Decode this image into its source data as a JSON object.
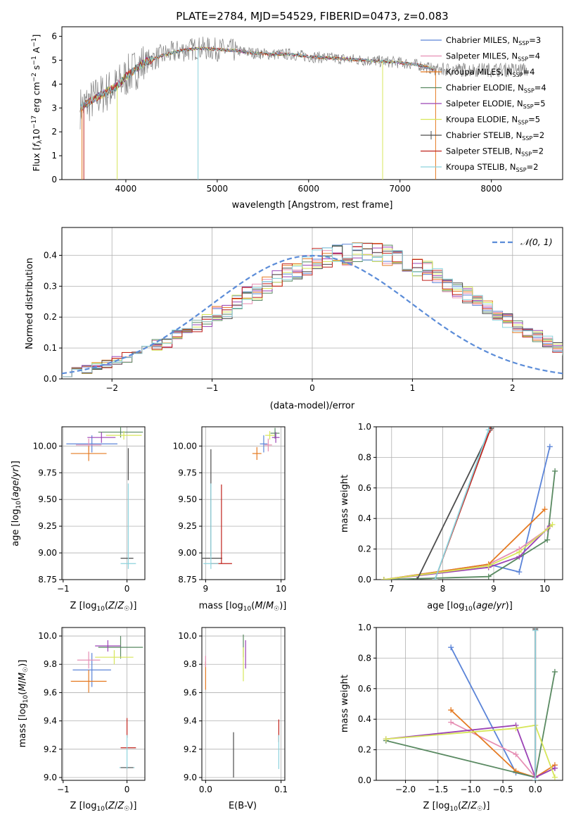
{
  "figure_title": "PLATE=2784, MJD=54529, FIBERID=0473, z=0.083",
  "colors": {
    "chabrier_miles": "#5b84d8",
    "salpeter_miles": "#e68fb4",
    "kroupa_miles": "#e57a22",
    "chabrier_elodie": "#5a8a62",
    "salpeter_elodie": "#9b43b5",
    "kroupa_elodie": "#d7e65a",
    "chabrier_stelib": "#4d4d4d",
    "salpeter_stelib": "#c0231c",
    "kroupa_stelib": "#8dd3dd",
    "data": "#808080",
    "normal": "#5b8cd8",
    "grid": "#b0b0b0"
  },
  "chart_data": [
    {
      "type": "line",
      "title": "PLATE=2784, MJD=54529, FIBERID=0473, z=0.083",
      "xlabel": "wavelength [Angstrom, rest frame]",
      "ylabel": "Flux [f_λ 10^-17 erg cm^-2 s^-1 A^-1]",
      "xlim": [
        3300,
        8780
      ],
      "ylim": [
        0,
        6.4
      ],
      "xticks": [
        "4000",
        "5000",
        "6000",
        "7000",
        "8000"
      ],
      "yticks": [
        "0",
        "1",
        "2",
        "3",
        "4",
        "5",
        "6"
      ],
      "grid": false,
      "legend_position": "right",
      "legend": [
        {
          "label": "Chabrier MILES, N_SSP=3",
          "text": "Chabrier MILES, N",
          "sub": "SSP",
          "tail": "=3",
          "color_key": "chabrier_miles"
        },
        {
          "label": "Salpeter MILES, N_SSP=4",
          "text": "Salpeter MILES, N",
          "sub": "SSP",
          "tail": "=4",
          "color_key": "salpeter_miles"
        },
        {
          "label": "Kroupa MILES, N_SSP=4",
          "text": "Kroupa MILES, N",
          "sub": "SSP",
          "tail": "=4",
          "color_key": "kroupa_miles"
        },
        {
          "label": "Chabrier ELODIE, N_SSP=4",
          "text": "Chabrier ELODIE, N",
          "sub": "SSP",
          "tail": "=4",
          "color_key": "chabrier_elodie"
        },
        {
          "label": "Salpeter ELODIE, N_SSP=5",
          "text": "Salpeter ELODIE, N",
          "sub": "SSP",
          "tail": "=5",
          "color_key": "salpeter_elodie"
        },
        {
          "label": "Kroupa ELODIE, N_SSP=5",
          "text": "Kroupa ELODIE, N",
          "sub": "SSP",
          "tail": "=5",
          "color_key": "kroupa_elodie"
        },
        {
          "label": "Chabrier STELIB, N_SSP=2",
          "text": "Chabrier STELIB, N",
          "sub": "SSP",
          "tail": "=2",
          "color_key": "chabrier_stelib"
        },
        {
          "label": "Salpeter STELIB, N_SSP=2",
          "text": "Salpeter STELIB, N",
          "sub": "SSP",
          "tail": "=2",
          "color_key": "salpeter_stelib"
        },
        {
          "label": "Kroupa STELIB, N_SSP=2",
          "text": "Kroupa STELIB, N",
          "sub": "SSP",
          "tail": "=2",
          "color_key": "kroupa_stelib"
        }
      ],
      "continuum": [
        [
          3500,
          3.0
        ],
        [
          3700,
          3.5
        ],
        [
          3900,
          3.9
        ],
        [
          4000,
          4.3
        ],
        [
          4200,
          4.9
        ],
        [
          4400,
          5.2
        ],
        [
          4600,
          5.4
        ],
        [
          4800,
          5.5
        ],
        [
          5000,
          5.45
        ],
        [
          5200,
          5.4
        ],
        [
          5400,
          5.3
        ],
        [
          5600,
          5.25
        ],
        [
          5800,
          5.25
        ],
        [
          6000,
          5.15
        ],
        [
          6200,
          5.1
        ],
        [
          6400,
          5.05
        ],
        [
          6600,
          5.0
        ],
        [
          6800,
          4.95
        ],
        [
          7000,
          4.9
        ],
        [
          7200,
          4.8
        ],
        [
          7300,
          4.7
        ],
        [
          7380,
          4.6
        ]
      ]
    },
    {
      "type": "step",
      "xlabel": "(data-model)/error",
      "ylabel": "Normed distribution",
      "xlim": [
        -2.5,
        2.5
      ],
      "ylim": [
        0,
        0.49
      ],
      "xticks": [
        "−2",
        "−1",
        "0",
        "1",
        "2"
      ],
      "yticks": [
        "0.0",
        "0.1",
        "0.2",
        "0.3",
        "0.4"
      ],
      "grid": true,
      "reference_curve": "N(0,1)",
      "legend_label": "N(0,1)",
      "legend_position": "top-right",
      "bin_width": 0.1,
      "bins_start": -2.5,
      "histogram_base": [
        0.02,
        0.03,
        0.03,
        0.04,
        0.05,
        0.06,
        0.07,
        0.09,
        0.1,
        0.11,
        0.12,
        0.14,
        0.15,
        0.17,
        0.19,
        0.21,
        0.22,
        0.25,
        0.27,
        0.28,
        0.3,
        0.32,
        0.34,
        0.35,
        0.37,
        0.39,
        0.39,
        0.4,
        0.4,
        0.41,
        0.41,
        0.41,
        0.4,
        0.39,
        0.38,
        0.36,
        0.35,
        0.33,
        0.31,
        0.29,
        0.27,
        0.25,
        0.23,
        0.21,
        0.19,
        0.17,
        0.15,
        0.14,
        0.12,
        0.1,
        0.09,
        0.08,
        0.07,
        0.06,
        0.05,
        0.04,
        0.03,
        0.03,
        0.02,
        0.02
      ]
    },
    {
      "type": "errorbar",
      "xlabel": "Z [log10(Z/Z☉)]",
      "ylabel": "age [log10(age/yr)]",
      "xlim": [
        -1.02,
        0.28
      ],
      "ylim": [
        8.75,
        10.18
      ],
      "xticks": [
        "−1",
        "0"
      ],
      "yticks": [
        "8.75",
        "9.00",
        "9.25",
        "9.50",
        "9.75",
        "10.00"
      ],
      "grid": true,
      "points": [
        {
          "s": "chabrier_miles",
          "x": -0.55,
          "y": 10.02,
          "xe": 0.4,
          "ye": 0.08
        },
        {
          "s": "salpeter_miles",
          "x": -0.6,
          "y": 10.01,
          "xe": 0.2,
          "ye": 0.06
        },
        {
          "s": "kroupa_miles",
          "x": -0.6,
          "y": 9.93,
          "xe": 0.28,
          "ye": 0.07
        },
        {
          "s": "chabrier_elodie",
          "x": -0.1,
          "y": 10.13,
          "xe": 0.35,
          "ye": 0.05
        },
        {
          "s": "salpeter_elodie",
          "x": -0.4,
          "y": 10.08,
          "xe": 0.22,
          "ye": 0.05
        },
        {
          "s": "kroupa_elodie",
          "x": -0.05,
          "y": 10.1,
          "xe": 0.28,
          "ye": 0.04
        },
        {
          "s": "chabrier_stelib",
          "x": 0.0,
          "y": 8.95,
          "xe": 0.1,
          "ye": 0.0
        },
        {
          "s": "chabrier_stelib",
          "x": 0.02,
          "y": 9.83,
          "xe": 0.0,
          "ye": 0.15
        },
        {
          "s": "kroupa_stelib",
          "x": 0.02,
          "y": 8.9,
          "xe": 0.12,
          "ye": 0.0
        },
        {
          "s": "kroupa_stelib",
          "x": 0.02,
          "y": 9.25,
          "xe": 0.0,
          "ye": 0.4
        }
      ]
    },
    {
      "type": "errorbar",
      "xlabel": "mass [log10(M/M☉)]",
      "ylabel": "",
      "xlim": [
        8.95,
        10.05
      ],
      "ylim": [
        8.75,
        10.18
      ],
      "xticks": [
        "9",
        "10"
      ],
      "yticks": [
        "8.75",
        "9.00",
        "9.25",
        "9.50",
        "9.75",
        "10.00"
      ],
      "grid": true,
      "points": [
        {
          "s": "chabrier_miles",
          "x": 9.77,
          "y": 10.02,
          "xe": 0.05,
          "ye": 0.08
        },
        {
          "s": "salpeter_miles",
          "x": 9.83,
          "y": 10.01,
          "xe": 0.05,
          "ye": 0.06
        },
        {
          "s": "kroupa_miles",
          "x": 9.68,
          "y": 9.93,
          "xe": 0.06,
          "ye": 0.06
        },
        {
          "s": "chabrier_elodie",
          "x": 9.92,
          "y": 10.12,
          "xe": 0.06,
          "ye": 0.05
        },
        {
          "s": "salpeter_elodie",
          "x": 9.93,
          "y": 10.08,
          "xe": 0.05,
          "ye": 0.05
        },
        {
          "s": "kroupa_elodie",
          "x": 9.85,
          "y": 10.1,
          "xe": 0.06,
          "ye": 0.04
        },
        {
          "s": "chabrier_stelib",
          "x": 9.07,
          "y": 8.95,
          "xe": 0.15,
          "ye": 0.0
        },
        {
          "s": "chabrier_stelib",
          "x": 9.07,
          "y": 9.47,
          "xe": 0.0,
          "ye": 0.5
        },
        {
          "s": "salpeter_stelib",
          "x": 9.21,
          "y": 8.9,
          "xe": 0.14,
          "ye": 0.0
        },
        {
          "s": "salpeter_stelib",
          "x": 9.21,
          "y": 9.27,
          "xe": 0.0,
          "ye": 0.37
        },
        {
          "s": "kroupa_stelib",
          "x": 9.07,
          "y": 8.9,
          "xe": 0.1,
          "ye": 0.0
        },
        {
          "s": "kroupa_stelib",
          "x": 9.07,
          "y": 9.25,
          "xe": 0.0,
          "ye": 0.4
        }
      ]
    },
    {
      "type": "line",
      "xlabel": "age [log10(age/yr)]",
      "ylabel": "mass weight",
      "xlim": [
        6.7,
        10.35
      ],
      "ylim": [
        0,
        1.0
      ],
      "xticks": [
        "7",
        "8",
        "9",
        "10"
      ],
      "yticks": [
        "0.0",
        "0.2",
        "0.4",
        "0.6",
        "0.8",
        "1.0"
      ],
      "grid": true,
      "series": [
        {
          "s": "chabrier_miles",
          "points": [
            [
              6.85,
              0.0
            ],
            [
              8.9,
              0.1
            ],
            [
              9.5,
              0.05
            ],
            [
              10.1,
              0.87
            ]
          ]
        },
        {
          "s": "salpeter_miles",
          "points": [
            [
              6.85,
              0.0
            ],
            [
              8.9,
              0.1
            ],
            [
              9.5,
              0.2
            ],
            [
              10.05,
              0.33
            ]
          ]
        },
        {
          "s": "kroupa_miles",
          "points": [
            [
              6.85,
              0.0
            ],
            [
              8.9,
              0.1
            ],
            [
              10.0,
              0.46
            ]
          ]
        },
        {
          "s": "chabrier_elodie",
          "points": [
            [
              6.85,
              0.0
            ],
            [
              8.9,
              0.02
            ],
            [
              10.05,
              0.26
            ],
            [
              10.2,
              0.71
            ]
          ]
        },
        {
          "s": "salpeter_elodie",
          "points": [
            [
              6.85,
              0.0
            ],
            [
              8.9,
              0.08
            ],
            [
              9.5,
              0.15
            ],
            [
              10.1,
              0.35
            ]
          ]
        },
        {
          "s": "kroupa_elodie",
          "points": [
            [
              6.85,
              0.0
            ],
            [
              8.9,
              0.09
            ],
            [
              9.5,
              0.18
            ],
            [
              10.15,
              0.36
            ]
          ]
        },
        {
          "s": "chabrier_stelib",
          "points": [
            [
              7.5,
              0.0
            ],
            [
              8.95,
              0.99
            ]
          ]
        },
        {
          "s": "salpeter_stelib",
          "points": [
            [
              7.85,
              0.0
            ],
            [
              8.93,
              0.98
            ]
          ]
        },
        {
          "s": "kroupa_stelib",
          "points": [
            [
              7.85,
              0.0
            ],
            [
              8.9,
              0.98
            ]
          ]
        }
      ]
    },
    {
      "type": "errorbar",
      "xlabel": "Z [log10(Z/Z☉)]",
      "ylabel": "mass [log10(M/M☉)]",
      "xlim": [
        -1.02,
        0.28
      ],
      "ylim": [
        8.98,
        10.06
      ],
      "xticks": [
        "−1",
        "0"
      ],
      "yticks": [
        "9.0",
        "9.2",
        "9.4",
        "9.6",
        "9.8",
        "10.0"
      ],
      "grid": true,
      "points": [
        {
          "s": "chabrier_miles",
          "x": -0.55,
          "y": 9.76,
          "xe": 0.3,
          "ye": 0.12
        },
        {
          "s": "salpeter_miles",
          "x": -0.6,
          "y": 9.83,
          "xe": 0.18,
          "ye": 0.06
        },
        {
          "s": "kroupa_miles",
          "x": -0.6,
          "y": 9.68,
          "xe": 0.28,
          "ye": 0.08
        },
        {
          "s": "chabrier_elodie",
          "x": -0.1,
          "y": 9.92,
          "xe": 0.35,
          "ye": 0.08
        },
        {
          "s": "salpeter_elodie",
          "x": -0.3,
          "y": 9.93,
          "xe": 0.2,
          "ye": 0.04
        },
        {
          "s": "kroupa_elodie",
          "x": -0.2,
          "y": 9.85,
          "xe": 0.3,
          "ye": 0.05
        },
        {
          "s": "salpeter_stelib",
          "x": 0.02,
          "y": 9.21,
          "xe": 0.12,
          "ye": 0.0
        },
        {
          "s": "salpeter_stelib",
          "x": 0.0,
          "y": 9.35,
          "xe": 0.0,
          "ye": 0.07
        },
        {
          "s": "kroupa_stelib",
          "x": 0.0,
          "y": 9.07,
          "xe": 0.12,
          "ye": 0.0
        },
        {
          "s": "chabrier_stelib",
          "x": 0.0,
          "y": 9.07,
          "xe": 0.1,
          "ye": 0.0
        },
        {
          "s": "kroupa_stelib",
          "x": 0.0,
          "y": 9.18,
          "xe": 0.0,
          "ye": 0.12
        }
      ]
    },
    {
      "type": "errorbar",
      "xlabel": "E(B-V)",
      "ylabel": "",
      "xlim": [
        -0.005,
        0.105
      ],
      "ylim": [
        8.98,
        10.06
      ],
      "xticks": [
        "0.0",
        "0.1"
      ],
      "yticks": [
        "9.0",
        "9.2",
        "9.4",
        "9.6",
        "9.8",
        "10.0"
      ],
      "grid": true,
      "points": [
        {
          "s": "kroupa_miles",
          "x": 0.0,
          "y": 9.72,
          "xe": 0.0,
          "ye": 0.1
        },
        {
          "s": "salpeter_miles",
          "x": 0.0,
          "y": 9.82,
          "xe": 0.0,
          "ye": 0.04
        },
        {
          "s": "chabrier_stelib",
          "x": 0.037,
          "y": 9.16,
          "xe": 0.0,
          "ye": 0.16
        },
        {
          "s": "chabrier_elodie",
          "x": 0.05,
          "y": 9.93,
          "xe": 0.0,
          "ye": 0.08
        },
        {
          "s": "kroupa_elodie",
          "x": 0.05,
          "y": 9.8,
          "xe": 0.0,
          "ye": 0.12
        },
        {
          "s": "salpeter_elodie",
          "x": 0.053,
          "y": 9.87,
          "xe": 0.0,
          "ye": 0.1
        },
        {
          "s": "salpeter_stelib",
          "x": 0.097,
          "y": 9.33,
          "xe": 0.0,
          "ye": 0.08
        },
        {
          "s": "kroupa_stelib",
          "x": 0.097,
          "y": 9.18,
          "xe": 0.0,
          "ye": 0.12
        }
      ]
    },
    {
      "type": "line",
      "xlabel": "Z [log10(Z/Z☉)]",
      "ylabel": "mass weight",
      "xlim": [
        -2.45,
        0.42
      ],
      "ylim": [
        0,
        1.0
      ],
      "xticks": [
        "−2.0",
        "−1.5",
        "−1.0",
        "−0.5",
        "0.0"
      ],
      "yticks": [
        "0.0",
        "0.2",
        "0.4",
        "0.6",
        "0.8",
        "1.0"
      ],
      "grid": true,
      "series": [
        {
          "s": "chabrier_miles",
          "points": [
            [
              -1.3,
              0.87
            ],
            [
              -0.3,
              0.05
            ],
            [
              0.0,
              0.02
            ],
            [
              0.3,
              0.08
            ]
          ]
        },
        {
          "s": "salpeter_miles",
          "points": [
            [
              -1.3,
              0.38
            ],
            [
              -0.3,
              0.17
            ],
            [
              0.0,
              0.02
            ],
            [
              0.3,
              0.08
            ]
          ]
        },
        {
          "s": "kroupa_miles",
          "points": [
            [
              -1.3,
              0.46
            ],
            [
              -0.3,
              0.06
            ],
            [
              0.0,
              0.02
            ],
            [
              0.3,
              0.1
            ]
          ]
        },
        {
          "s": "chabrier_elodie",
          "points": [
            [
              -2.3,
              0.26
            ],
            [
              0.0,
              0.02
            ],
            [
              0.3,
              0.71
            ]
          ]
        },
        {
          "s": "salpeter_elodie",
          "points": [
            [
              -2.3,
              0.27
            ],
            [
              -0.3,
              0.36
            ],
            [
              0.0,
              0.02
            ],
            [
              0.3,
              0.08
            ]
          ]
        },
        {
          "s": "kroupa_elodie",
          "points": [
            [
              -2.3,
              0.27
            ],
            [
              -0.3,
              0.34
            ],
            [
              0.0,
              0.36
            ],
            [
              0.3,
              0.02
            ]
          ]
        },
        {
          "s": "chabrier_stelib",
          "points": [
            [
              0.0,
              0.99
            ],
            [
              0.0,
              0.0
            ]
          ]
        },
        {
          "s": "salpeter_stelib",
          "points": [
            [
              0.0,
              0.98
            ],
            [
              0.0,
              0.0
            ]
          ]
        },
        {
          "s": "kroupa_stelib",
          "points": [
            [
              0.0,
              0.98
            ],
            [
              0.0,
              0.0
            ]
          ]
        }
      ]
    }
  ]
}
